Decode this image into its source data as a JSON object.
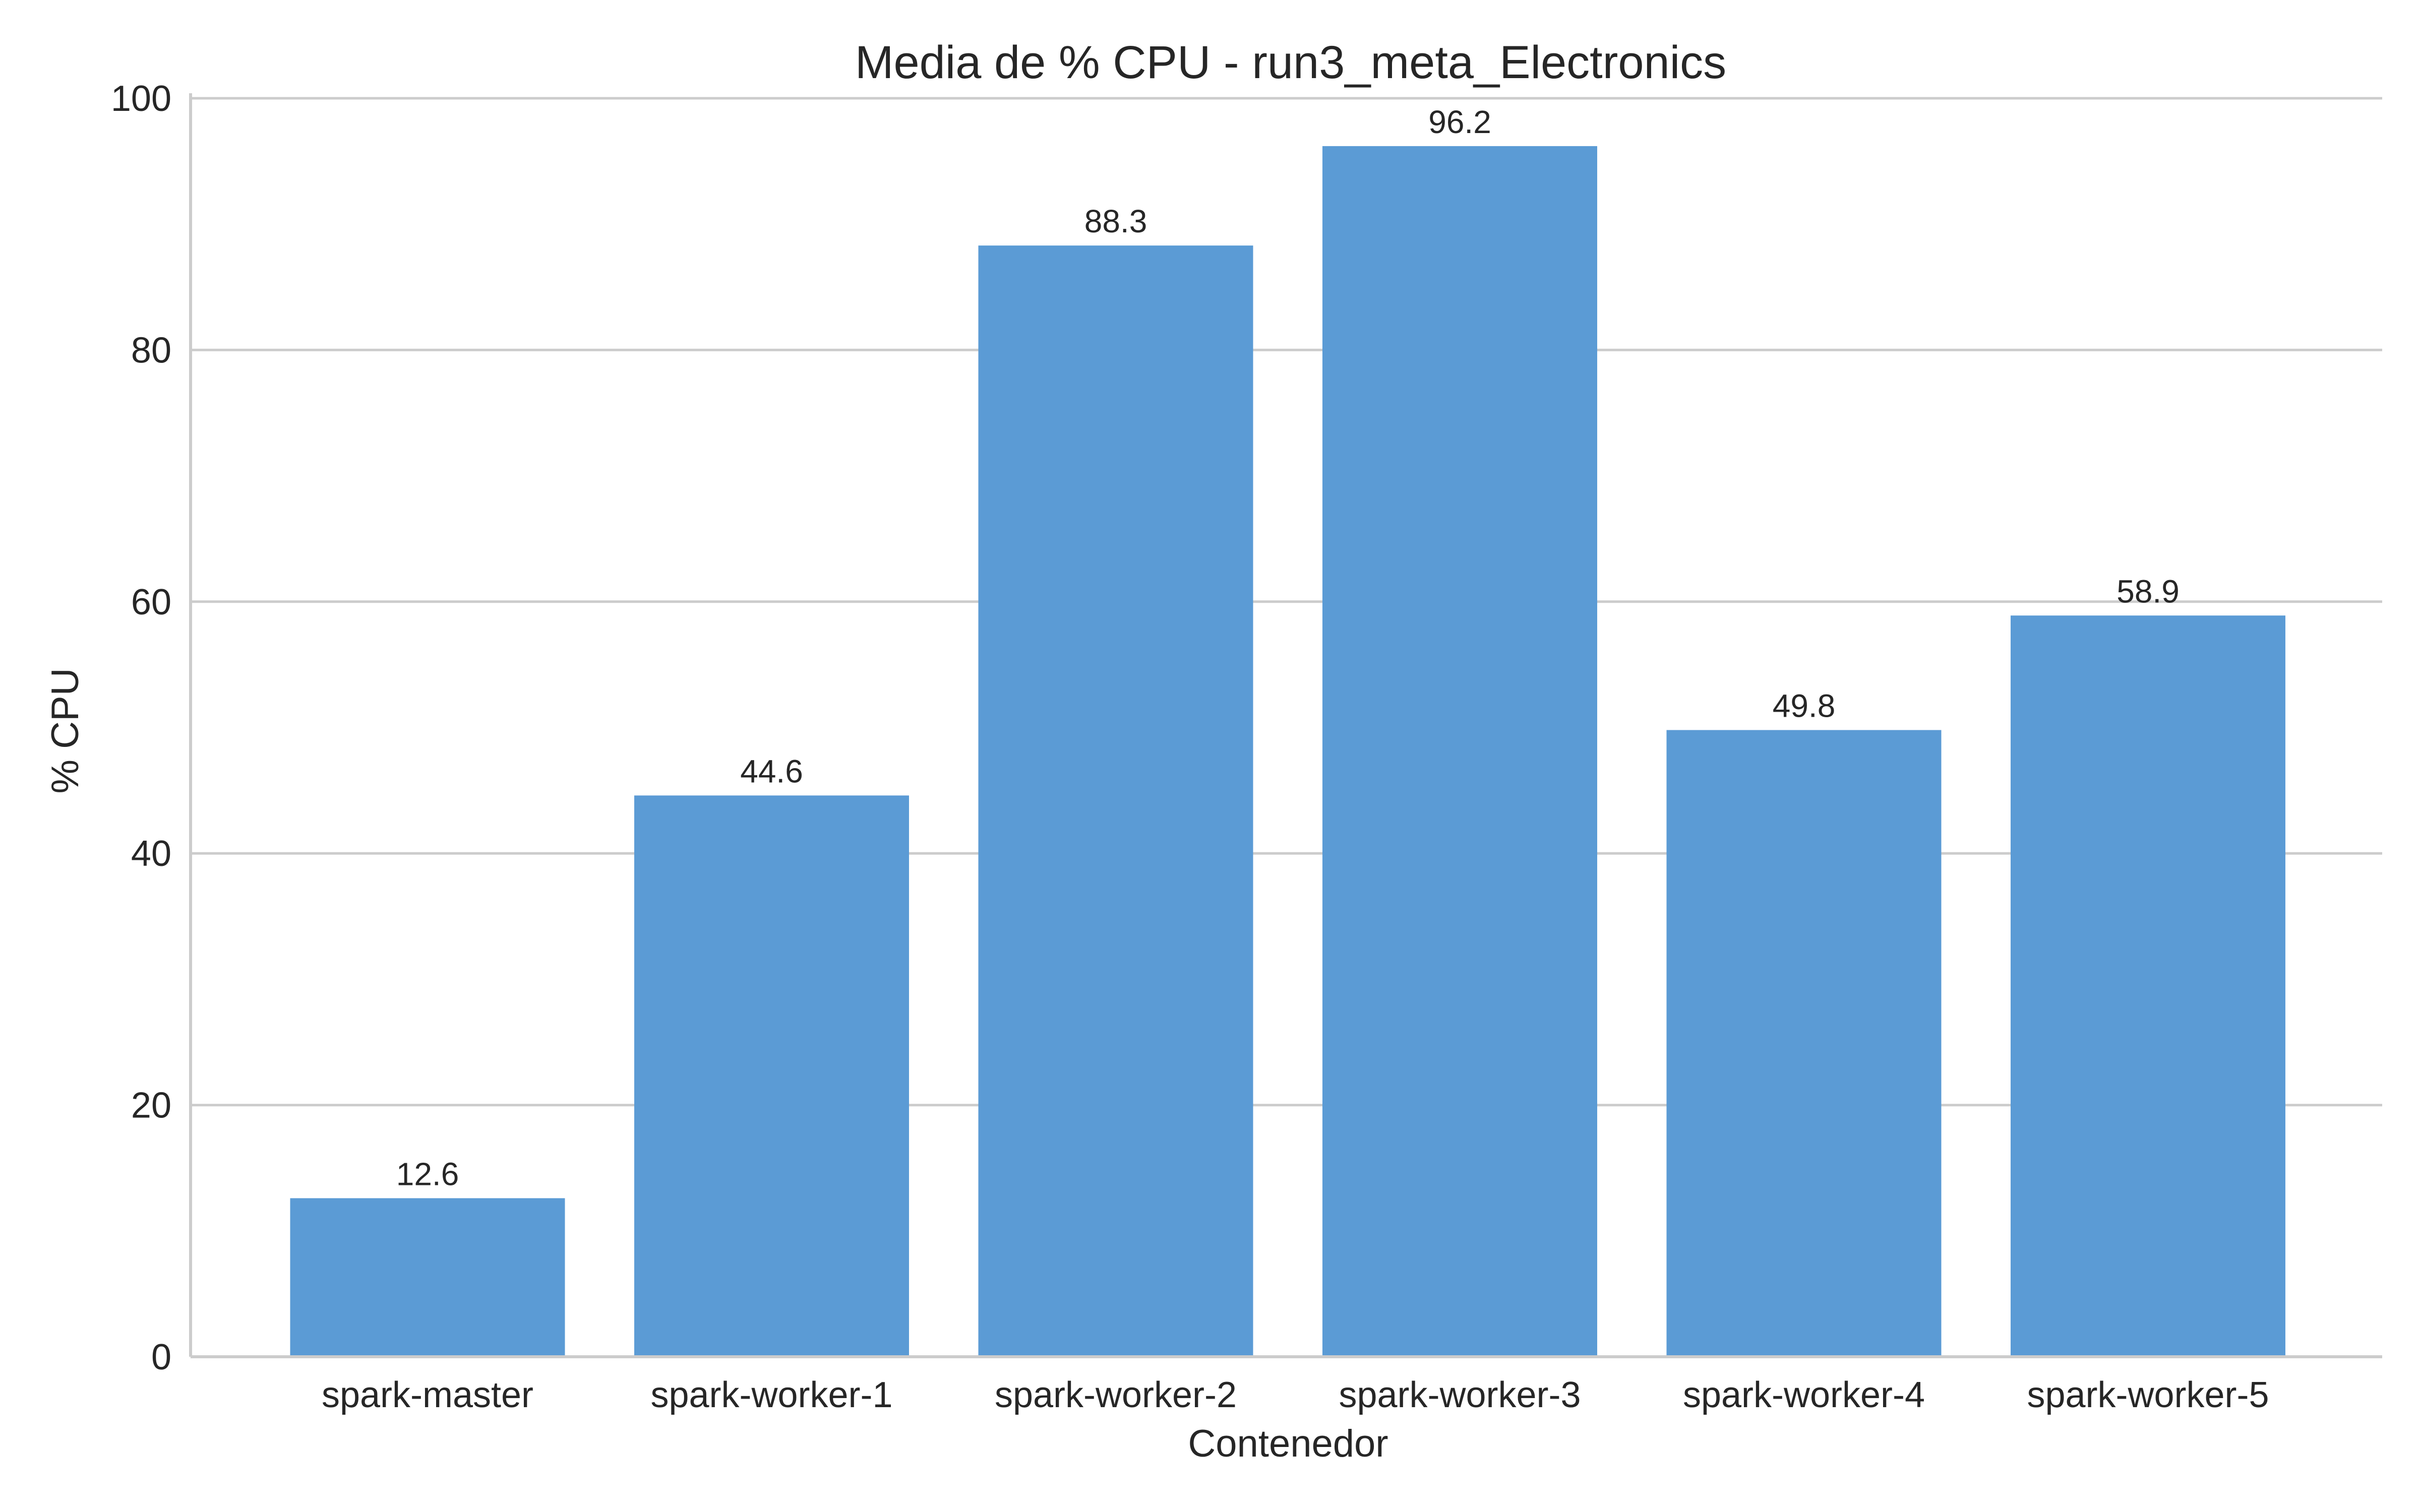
{
  "chart_data": {
    "type": "bar",
    "title": "Media de % CPU - run3_meta_Electronics",
    "xlabel": "Contenedor",
    "ylabel": "% CPU",
    "categories": [
      "spark-master",
      "spark-worker-1",
      "spark-worker-2",
      "spark-worker-3",
      "spark-worker-4",
      "spark-worker-5"
    ],
    "values": [
      12.6,
      44.6,
      88.3,
      96.2,
      49.8,
      58.9
    ],
    "data_labels": [
      "12.6",
      "44.6",
      "88.3",
      "96.2",
      "49.8",
      "58.9"
    ],
    "y_ticks": [
      0,
      20,
      40,
      60,
      80,
      100
    ],
    "ylim": [
      0,
      100
    ],
    "grid": "horizontal",
    "legend": "none",
    "bar_color": "#5b9bd5",
    "grid_color": "#cccccc"
  }
}
